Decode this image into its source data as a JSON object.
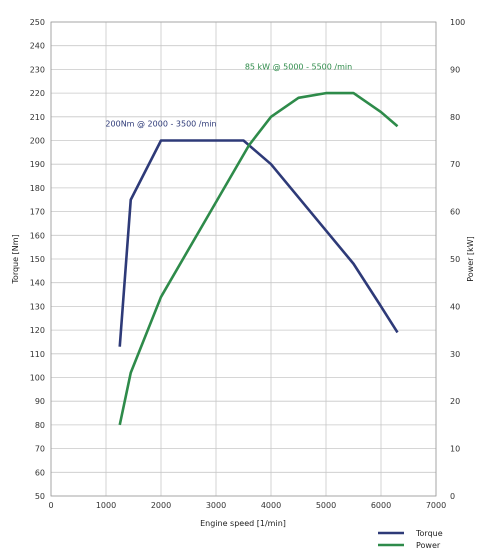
{
  "chart_data": {
    "type": "line",
    "xlabel": "Engine speed [1/min]",
    "ylabel_left": "Torque [Nm]",
    "ylabel_right": "Power [kW]",
    "xlim": [
      0,
      7000
    ],
    "ylim_left": [
      50,
      250
    ],
    "ylim_right": [
      0,
      100
    ],
    "x_ticks": [
      0,
      1000,
      2000,
      3000,
      4000,
      5000,
      6000,
      7000
    ],
    "y_left_ticks": [
      50,
      60,
      70,
      80,
      90,
      100,
      110,
      120,
      130,
      140,
      150,
      160,
      170,
      180,
      190,
      200,
      210,
      220,
      230,
      240,
      250
    ],
    "y_right_ticks": [
      0,
      10,
      20,
      30,
      40,
      50,
      60,
      70,
      80,
      90,
      100
    ],
    "grid": true,
    "legend_position": "bottom-right",
    "series": [
      {
        "name": "Torque",
        "axis": "left",
        "color": "#2e3a78",
        "points": [
          [
            1250,
            113
          ],
          [
            1450,
            175
          ],
          [
            2000,
            200
          ],
          [
            3500,
            200
          ],
          [
            4000,
            190
          ],
          [
            5000,
            162
          ],
          [
            5500,
            148
          ],
          [
            6000,
            130
          ],
          [
            6300,
            119
          ]
        ]
      },
      {
        "name": "Power",
        "axis": "right",
        "color": "#2e8b4a",
        "points": [
          [
            1250,
            15
          ],
          [
            1450,
            26
          ],
          [
            2000,
            42
          ],
          [
            3000,
            62
          ],
          [
            3600,
            74
          ],
          [
            4000,
            80
          ],
          [
            4500,
            84
          ],
          [
            5000,
            85
          ],
          [
            5500,
            85
          ],
          [
            6000,
            81
          ],
          [
            6300,
            78
          ]
        ]
      }
    ],
    "annotations": [
      {
        "text": "200Nm @ 2000 - 3500 /min",
        "x": 2000,
        "y": 206,
        "axis": "left",
        "color": "#2e3a78"
      },
      {
        "text": "85 kW @ 5000 - 5500 /min",
        "x": 4500,
        "y": 90,
        "axis": "right",
        "color": "#2e8b4a"
      }
    ]
  }
}
